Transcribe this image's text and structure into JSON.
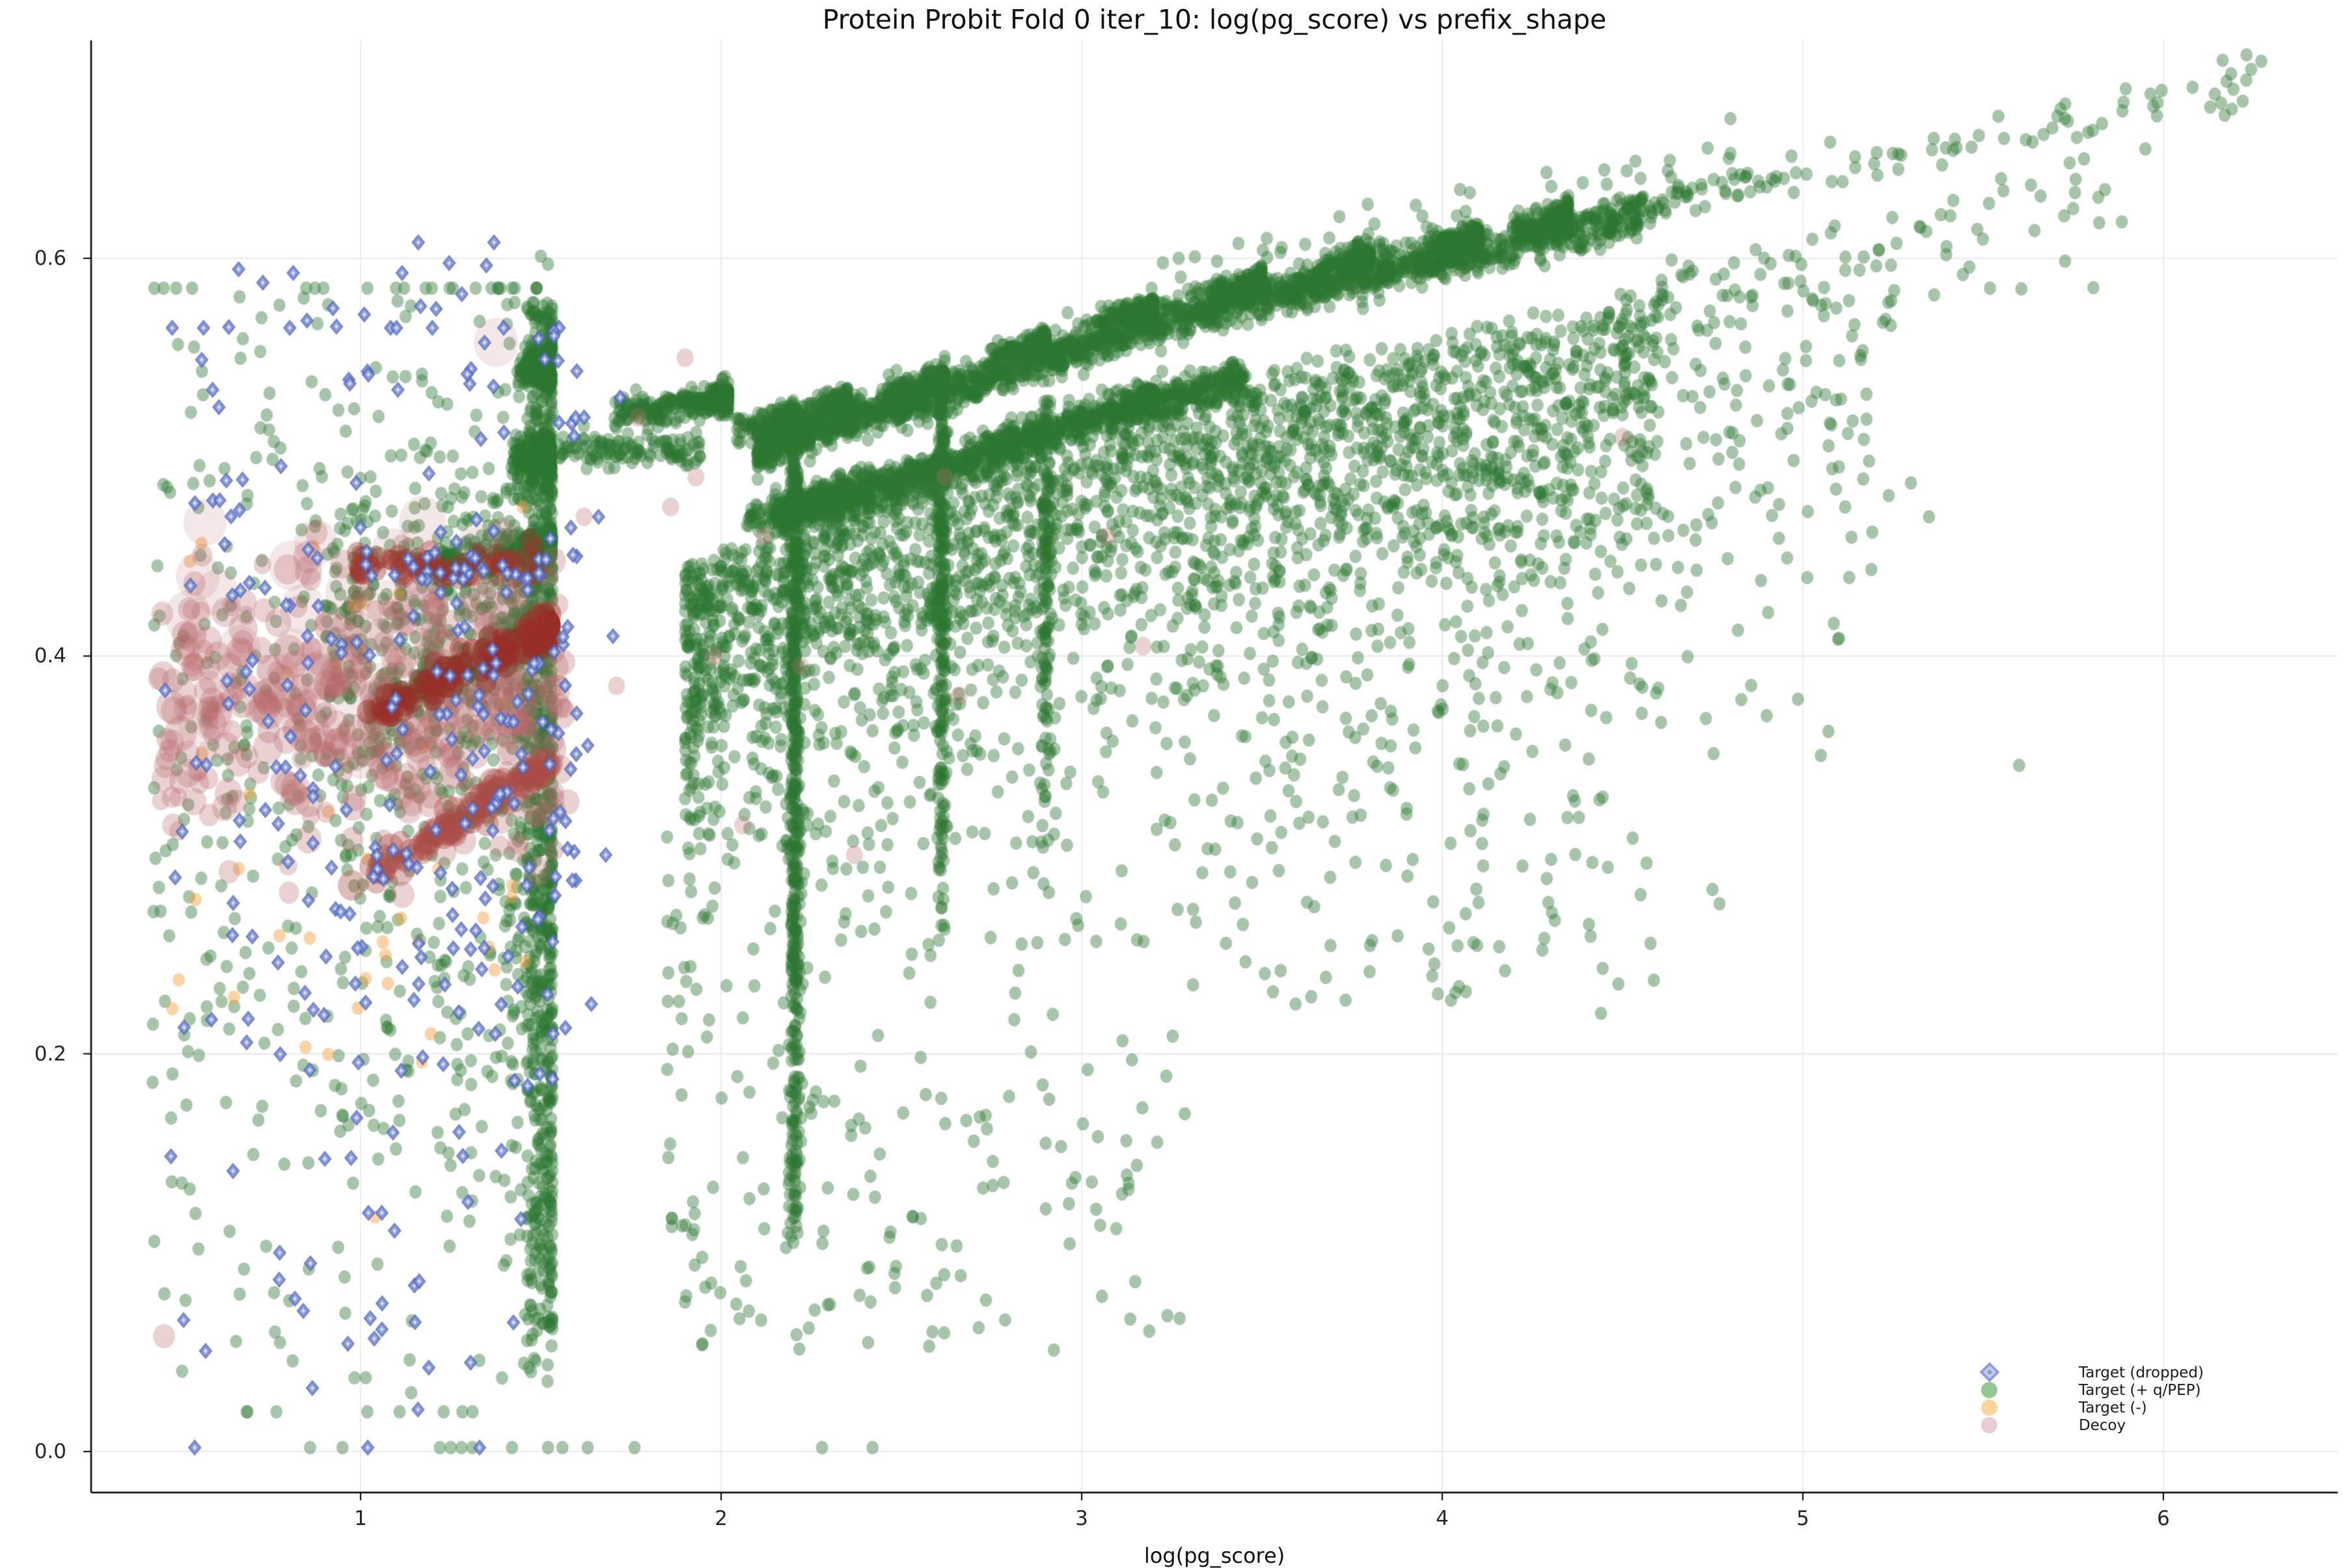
{
  "title": "Protein Probit Fold 0 iter_10: log(pg_score) vs prefix_shape",
  "xlabel": "log(pg_score)",
  "chart_data": {
    "type": "scatter",
    "title": "Protein Probit Fold 0 iter_10: log(pg_score) vs prefix_shape",
    "xlabel": "log(pg_score)",
    "ylabel": "",
    "xlim": [
      0.25,
      6.48
    ],
    "ylim": [
      -0.021,
      0.71
    ],
    "x_ticks": [
      1,
      2,
      3,
      4,
      5,
      6
    ],
    "x_tick_labels": [
      "1",
      "2",
      "3",
      "4",
      "5",
      "6"
    ],
    "y_ticks": [
      0.0,
      0.2,
      0.4,
      0.6
    ],
    "y_tick_labels": [
      "0.0",
      "0.2",
      "0.4",
      "0.6"
    ],
    "grid": true,
    "grid_color": "#e4e4e4",
    "background": "#ffffff",
    "legend_position": "lower right",
    "legend": [
      {
        "series": "target_dropped",
        "label": "Target (dropped)",
        "marker": "diamond",
        "swatch_outer": "#8f9ed8",
        "swatch_inner": "#c2cdee",
        "swatch_center": "#8b9cd8"
      },
      {
        "series": "target_pos",
        "label": "Target (+ q/PEP)",
        "marker": "circle",
        "swatch": "#95c795"
      },
      {
        "series": "target_neg",
        "label": "Target (-)",
        "marker": "circle",
        "swatch": "#fbd49e"
      },
      {
        "series": "decoy",
        "label": "Decoy",
        "marker": "circle",
        "swatch": "#e8ced2"
      }
    ],
    "series_styles": {
      "target_pos": {
        "marker": "circle",
        "color": "rgba(45,118,50,0.42)",
        "r": 9.4
      },
      "target_neg": {
        "marker": "circle",
        "color": "rgba(243,158,58,0.45)",
        "r": 9.4
      },
      "decoy": {
        "marker": "circle",
        "color": "rgba(186,106,110,0.30)",
        "r": 13
      },
      "target_dropped": {
        "marker": "diamond",
        "outer": "rgba(82,105,190,0.80)",
        "inner": "rgba(148,164,222,0.90)",
        "center": "rgba(222,230,250,0.95)",
        "r": 10.5
      }
    },
    "band_curve_pts": [
      [
        1.45,
        0.451
      ],
      [
        2.2,
        0.508
      ],
      [
        2.62,
        0.528
      ],
      [
        3.0,
        0.552
      ],
      [
        3.3,
        0.568
      ],
      [
        3.7,
        0.585
      ],
      [
        4.17,
        0.602
      ],
      [
        4.8,
        0.628
      ],
      [
        5.3,
        0.645
      ],
      [
        5.8,
        0.663
      ],
      [
        6.3,
        0.687
      ]
    ],
    "clusters": [
      {
        "series": "target_pos",
        "n": 2200,
        "x": {
          "kind": "pow",
          "min": 2.1,
          "max": 4.55,
          "exp": 1.25
        },
        "y": {
          "kind": "curve",
          "offset": 0.004,
          "sigma": 0.005
        }
      },
      {
        "series": "target_pos",
        "n": 1100,
        "x": {
          "kind": "pow",
          "min": 2.15,
          "max": 3.45,
          "exp": 1.2
        },
        "y": {
          "kind": "curve",
          "offset": -0.034,
          "sigma": 0.005
        }
      },
      {
        "type": "knots",
        "series": "target_pos",
        "xs": [
          2.2,
          2.35,
          2.62,
          2.9,
          3.2,
          3.5,
          3.8,
          4.1,
          4.35
        ],
        "nEach": 130,
        "dx": 0.16,
        "offset": 0.013,
        "slope": 0.05,
        "sigma": 0.0035
      },
      {
        "type": "knots",
        "series": "target_pos",
        "xs": [
          2.21,
          2.35,
          2.62,
          2.9,
          3.2
        ],
        "nEach": 100,
        "dx": 0.14,
        "offset": -0.033,
        "slope": 0.05,
        "sigma": 0.0035
      },
      {
        "type": "knots",
        "series": "target_pos",
        "xs": [
          1.525
        ],
        "nEach": 300,
        "dx": 0.5,
        "offset": -0.043,
        "slope": 0.085,
        "sigma": 0.005
      },
      {
        "type": "knots",
        "series": "target_pos",
        "xs": [
          1.53
        ],
        "nEach": 260,
        "dx": 0.35,
        "offset": -0.001,
        "slope": 0.035,
        "sigma": 0.004
      },
      {
        "type": "knots",
        "series": "target_pos",
        "xs": [
          1.528
        ],
        "nEach": 240,
        "dx": 0.11,
        "offset": 0.045,
        "slope": 0.02,
        "sigma": 0.006
      },
      {
        "type": "knots",
        "series": "target_pos",
        "xs": [
          1.528
        ],
        "nEach": 190,
        "dx": 0.09,
        "offset": 0.089,
        "slope": 0.02,
        "sigma": 0.005
      },
      {
        "type": "knots",
        "series": "target_pos",
        "xs": [
          2.02
        ],
        "nEach": 280,
        "dx": 0.32,
        "offset": 0.036,
        "slope": 0.03,
        "sigma": 0.004
      },
      {
        "series": "target_pos",
        "n": 120,
        "x": {
          "kind": "uniform",
          "min": 1.55,
          "max": 1.95
        },
        "y": {
          "kind": "gauss",
          "mu": 0.503,
          "sigma": 0.004
        }
      },
      {
        "series": "target_pos",
        "n": 850,
        "x": {
          "kind": "powmax",
          "min": 1.46,
          "max": 1.532,
          "exp": 1.8
        },
        "y": {
          "kind": "pow",
          "min": 0.03,
          "max": 0.578,
          "exp": 0.75
        }
      },
      {
        "series": "target_pos",
        "n": 60,
        "x": {
          "kind": "uniform",
          "min": 1.4,
          "max": 1.47
        },
        "y": {
          "kind": "uniform",
          "min": 0.1,
          "max": 0.5
        }
      },
      {
        "series": "target_pos",
        "n": 520,
        "x": {
          "kind": "gauss",
          "mu": 2.205,
          "sigma": 0.008,
          "min": 2.18,
          "max": 2.23
        },
        "y": {
          "kind": "pow",
          "min": 0.1,
          "max": 0.525,
          "exp": 0.7
        }
      },
      {
        "series": "target_pos",
        "n": 250,
        "x": {
          "kind": "gauss",
          "mu": 2.61,
          "sigma": 0.008
        },
        "y": {
          "kind": "pow",
          "min": 0.26,
          "max": 0.545,
          "exp": 0.75
        }
      },
      {
        "series": "target_pos",
        "n": 130,
        "x": {
          "kind": "gauss",
          "mu": 2.9,
          "sigma": 0.008
        },
        "y": {
          "kind": "pow",
          "min": 0.3,
          "max": 0.53,
          "exp": 0.65
        }
      },
      {
        "series": "target_pos",
        "n": 2400,
        "x": {
          "kind": "pow",
          "min": 1.9,
          "max": 4.6,
          "exp": 1.35
        },
        "y": {
          "kind": "curve",
          "offset": -0.04,
          "sigma": 0.07,
          "absNeg": true,
          "min": 0.06
        }
      },
      {
        "series": "target_pos",
        "n": 500,
        "x": {
          "kind": "pow",
          "min": 3.3,
          "max": 5.25,
          "exp": 1.1
        },
        "y": {
          "kind": "curve",
          "offset": -0.03,
          "sigma": 0.1,
          "absNeg": true,
          "min": 0.15
        }
      },
      {
        "series": "target_pos",
        "n": 450,
        "x": {
          "kind": "powmax",
          "min": 0.9,
          "max": 1.5,
          "exp": 1.3
        },
        "y": {
          "kind": "gauss",
          "mu": 0.405,
          "sigma": 0.042,
          "min": 0.3,
          "max": 0.52
        }
      },
      {
        "series": "target_pos",
        "n": 620,
        "x": {
          "kind": "powmax",
          "min": 0.42,
          "max": 1.5,
          "exp": 1.4
        },
        "y": {
          "kind": "gauss",
          "mu": 0.33,
          "sigma": 0.14,
          "min": 0.02,
          "max": 0.585
        }
      },
      {
        "series": "target_pos",
        "n": 240,
        "x": {
          "kind": "pow",
          "min": 1.85,
          "max": 3.3,
          "exp": 1.5
        },
        "y": {
          "kind": "uniform",
          "min": 0.05,
          "max": 0.32
        }
      },
      {
        "series": "target_pos",
        "n": 150,
        "x": {
          "kind": "uniform",
          "min": 3.3,
          "max": 4.6
        },
        "y": {
          "kind": "uniform",
          "min": 0.22,
          "max": 0.4
        }
      },
      {
        "series": "target_pos",
        "n": 55,
        "x": {
          "kind": "uniform",
          "min": 3.2,
          "max": 4.8
        },
        "y": {
          "kind": "curve",
          "offset": 0.022,
          "sigma": 0.009
        }
      },
      {
        "series": "target_pos",
        "n": 110,
        "x": {
          "kind": "pow",
          "min": 4.55,
          "max": 6.28,
          "exp": 1.5
        },
        "y": {
          "kind": "curve",
          "offset": 0.008,
          "sigma": 0.005
        }
      },
      {
        "series": "target_pos",
        "n": 60,
        "x": {
          "kind": "pow",
          "min": 4.6,
          "max": 5.9,
          "exp": 1.3
        },
        "y": {
          "kind": "curve",
          "offset": -0.02,
          "sigma": 0.025,
          "absNeg": true,
          "min": 0.45
        }
      },
      {
        "series": "target_pos",
        "n": 45,
        "x": {
          "kind": "uniform",
          "min": 0.98,
          "max": 1.54
        },
        "y": {
          "kind": "lin",
          "x0": 0.97,
          "y0": 0.2835,
          "slope": 0.112,
          "sigma": 0.0025
        }
      },
      {
        "series": "target_neg",
        "n": 38,
        "x": {
          "kind": "uniform",
          "min": 0.45,
          "max": 1.55
        },
        "y": {
          "kind": "uniform",
          "min": 0.18,
          "max": 0.46
        }
      },
      {
        "series": "decoy",
        "n": 360,
        "x": {
          "kind": "uniform",
          "min": 0.44,
          "max": 1.58
        },
        "y": {
          "kind": "gauss",
          "mu": 0.372,
          "sigma": 0.036,
          "min": 0.28,
          "max": 0.462
        },
        "r": [
          9,
          22,
          2
        ]
      },
      {
        "series": "decoy",
        "n": 45,
        "x": {
          "kind": "uniform",
          "min": 0.5,
          "max": 1.45
        },
        "y": {
          "kind": "gauss",
          "mu": 0.4,
          "sigma": 0.04
        },
        "r": [
          20,
          30,
          1.5
        ],
        "color": "rgba(186,106,110,0.16)"
      },
      {
        "series": "decoy",
        "n": 120,
        "x": {
          "kind": "powmax",
          "min": 1.02,
          "max": 1.525,
          "exp": 1.8
        },
        "y": {
          "kind": "lin",
          "x0": 1.525,
          "y0": 0.4135,
          "slope": 0.085,
          "sigma": 0.0045
        },
        "r": [
          9,
          15,
          2
        ],
        "color": "rgba(152,46,40,0.45)"
      },
      {
        "series": "decoy",
        "n": 65,
        "x": {
          "kind": "uniform",
          "min": 0.97,
          "max": 1.53
        },
        "y": {
          "kind": "gauss",
          "mu": 0.4455,
          "sigma": 0.004
        },
        "r": [
          9,
          14,
          2
        ],
        "color": "rgba(158,52,46,0.40)"
      },
      {
        "series": "decoy",
        "n": 80,
        "x": {
          "kind": "uniform",
          "min": 0.97,
          "max": 1.54
        },
        "y": {
          "kind": "lin",
          "x0": 0.97,
          "y0": 0.2835,
          "slope": 0.112,
          "sigma": 0.0035
        },
        "r": [
          10,
          20,
          2
        ],
        "color": "rgba(170,75,70,0.38)"
      },
      {
        "series": "target_dropped",
        "n": 250,
        "x": {
          "kind": "powmax",
          "min": 0.44,
          "max": 1.6,
          "exp": 1.25
        },
        "y": {
          "kind": "gauss",
          "mu": 0.36,
          "sigma": 0.115,
          "min": 0.12,
          "max": 0.565
        }
      },
      {
        "series": "target_dropped",
        "n": 14,
        "x": {
          "kind": "uniform",
          "min": 0.6,
          "max": 1.45
        },
        "y": {
          "kind": "uniform",
          "min": 0.565,
          "max": 0.612
        }
      },
      {
        "series": "target_dropped",
        "n": 22,
        "x": {
          "kind": "uniform",
          "min": 0.5,
          "max": 1.5
        },
        "y": {
          "kind": "uniform",
          "min": 0.02,
          "max": 0.12
        }
      },
      {
        "series": "target_dropped",
        "n": 26,
        "x": {
          "kind": "uniform",
          "min": 0.97,
          "max": 1.52
        },
        "y": {
          "kind": "gauss",
          "mu": 0.4445,
          "sigma": 0.005
        }
      },
      {
        "series": "target_dropped",
        "n": 11,
        "x": {
          "kind": "uniform",
          "min": 1.0,
          "max": 1.52
        },
        "y": {
          "kind": "lin",
          "x0": 0.97,
          "y0": 0.2835,
          "slope": 0.112,
          "sigma": 0.002
        }
      }
    ],
    "points": [
      {
        "series": "target_pos",
        "pts": [
          [
            6.13,
            0.676
          ],
          [
            6.16,
            0.678
          ],
          [
            6.19,
            0.675
          ],
          [
            6.22,
            0.679
          ],
          [
            6.17,
            0.672
          ],
          [
            5.74,
            0.648
          ],
          [
            5.78,
            0.65
          ],
          [
            5.95,
            0.655
          ],
          [
            5.55,
            0.64
          ],
          [
            0.86,
            0.002
          ],
          [
            0.95,
            0.002
          ],
          [
            1.22,
            0.002
          ],
          [
            1.25,
            0.002
          ],
          [
            1.28,
            0.002
          ],
          [
            1.31,
            0.002
          ],
          [
            1.42,
            0.002
          ],
          [
            1.52,
            0.002
          ],
          [
            1.56,
            0.002
          ],
          [
            1.63,
            0.002
          ],
          [
            1.76,
            0.002
          ],
          [
            2.28,
            0.002
          ],
          [
            2.42,
            0.002
          ],
          [
            1.5,
            0.601
          ],
          [
            1.52,
            0.597
          ],
          [
            5.3,
            0.487
          ],
          [
            5.35,
            0.47
          ],
          [
            4.9,
            0.37
          ],
          [
            5.05,
            0.35
          ],
          [
            4.55,
            0.28
          ],
          [
            5.6,
            0.345
          ]
        ]
      },
      {
        "series": "target_neg",
        "pts": [
          [
            1.17,
            0.196
          ],
          [
            1.16,
            0.256
          ],
          [
            1.04,
            0.118
          ],
          [
            1.45,
            0.475
          ],
          [
            0.98,
            0.425
          ]
        ]
      },
      {
        "series": "decoy",
        "pts": [
          [
            1.62,
            0.47
          ],
          [
            1.71,
            0.385
          ],
          [
            1.77,
            0.52
          ],
          [
            1.86,
            0.475
          ],
          [
            1.93,
            0.49
          ],
          [
            1.98,
            0.4
          ],
          [
            2.06,
            0.315
          ],
          [
            2.12,
            0.46
          ],
          [
            2.22,
            0.395
          ],
          [
            2.37,
            0.3
          ],
          [
            2.62,
            0.49
          ],
          [
            2.66,
            0.38
          ],
          [
            3.07,
            0.46
          ],
          [
            3.17,
            0.405
          ],
          [
            1.9,
            0.55
          ],
          [
            4.5,
            0.51
          ]
        ],
        "r": 13
      },
      {
        "series": "decoy",
        "pts": [
          [
            0.455,
            0.058
          ]
        ],
        "r": 17
      },
      {
        "series": "target_dropped",
        "pts": [
          [
            0.54,
            0.002
          ],
          [
            1.02,
            0.002
          ],
          [
            1.33,
            0.002
          ],
          [
            1.62,
            0.52
          ],
          [
            1.66,
            0.47
          ],
          [
            1.7,
            0.41
          ],
          [
            1.63,
            0.355
          ],
          [
            1.68,
            0.3
          ],
          [
            1.64,
            0.225
          ],
          [
            1.72,
            0.53
          ],
          [
            1.16,
            0.608
          ],
          [
            1.37,
            0.608
          ]
        ]
      }
    ]
  }
}
